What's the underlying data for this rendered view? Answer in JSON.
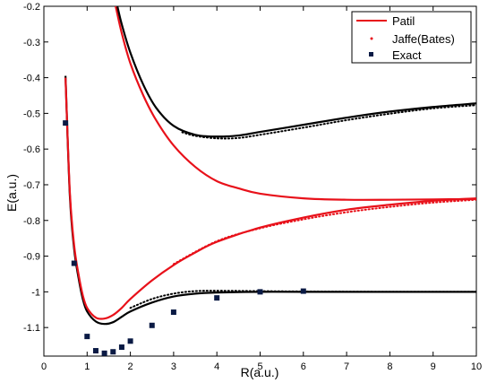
{
  "chart_data": {
    "type": "line",
    "xlabel": "R(a.u.)",
    "ylabel": "E(a.u.)",
    "xlim": [
      0,
      10
    ],
    "ylim": [
      -1.18,
      -0.2
    ],
    "x_ticks": [
      0,
      1,
      2,
      3,
      4,
      5,
      6,
      7,
      8,
      9,
      10
    ],
    "y_ticks": [
      -1.1,
      -1,
      -0.9,
      -0.8,
      -0.7,
      -0.6,
      -0.5,
      -0.4,
      -0.3,
      -0.2
    ],
    "x_tick_labels": [
      "0",
      "1",
      "2",
      "3",
      "4",
      "5",
      "6",
      "7",
      "8",
      "9",
      "10"
    ],
    "y_tick_labels": [
      "-1.1",
      "-1",
      "-0.9",
      "-0.8",
      "-0.7",
      "-0.6",
      "-0.5",
      "-0.4",
      "-0.3",
      "-0.2"
    ],
    "grid": false,
    "legend_position": "top-right",
    "legend": [
      {
        "label": "Patil",
        "style": "red-line"
      },
      {
        "label": "Jaffe(Bates)",
        "style": "red-dot"
      },
      {
        "label": "Exact",
        "style": "navy-square"
      }
    ],
    "curves": [
      {
        "id": "ground-black",
        "color": "#000000",
        "dash": false,
        "x": [
          0.5,
          0.6,
          0.7,
          0.8,
          0.9,
          1.0,
          1.2,
          1.4,
          1.6,
          1.8,
          2.0,
          2.5,
          3.0,
          3.5,
          4.0,
          5.0,
          6.0,
          8.0,
          10.0
        ],
        "y": [
          -0.395,
          -0.73,
          -0.88,
          -0.96,
          -1.02,
          -1.055,
          -1.083,
          -1.09,
          -1.085,
          -1.07,
          -1.055,
          -1.03,
          -1.013,
          -1.005,
          -1.002,
          -1.0,
          -1.0,
          -1.0,
          -1.0
        ]
      },
      {
        "id": "ground-dotted",
        "color": "#000000",
        "dash": true,
        "x": [
          2.0,
          2.5,
          3.0,
          3.5,
          4.0,
          5.0,
          6.0,
          8.0,
          10.0
        ],
        "y": [
          -1.045,
          -1.02,
          -1.005,
          -0.998,
          -0.997,
          -0.998,
          -0.999,
          -1.0,
          -1.0
        ]
      },
      {
        "id": "ground-red",
        "color": "#e8111a",
        "dash": false,
        "x": [
          0.5,
          0.6,
          0.7,
          0.8,
          0.9,
          1.0,
          1.2,
          1.4,
          1.6,
          1.8,
          2.0,
          2.5,
          3.0,
          3.5,
          4.0,
          5.0,
          6.0,
          7.0,
          8.0,
          9.0,
          10.0
        ],
        "y": [
          -0.4,
          -0.72,
          -0.87,
          -0.95,
          -1.01,
          -1.045,
          -1.072,
          -1.075,
          -1.065,
          -1.045,
          -1.02,
          -0.968,
          -0.925,
          -0.89,
          -0.86,
          -0.82,
          -0.792,
          -0.77,
          -0.756,
          -0.745,
          -0.738
        ]
      },
      {
        "id": "ground-red-dotted",
        "color": "#e8111a",
        "dash": true,
        "x": [
          3.0,
          4.0,
          5.0,
          6.0,
          7.0,
          8.0,
          9.0,
          10.0
        ],
        "y": [
          -0.922,
          -0.858,
          -0.822,
          -0.797,
          -0.777,
          -0.762,
          -0.75,
          -0.742
        ]
      },
      {
        "id": "excited-red",
        "color": "#e8111a",
        "dash": false,
        "x": [
          1.66,
          1.8,
          2.0,
          2.3,
          2.6,
          3.0,
          3.5,
          4.0,
          4.5,
          5.0,
          6.0,
          7.0,
          8.0,
          9.0,
          10.0
        ],
        "y": [
          -0.2,
          -0.275,
          -0.36,
          -0.45,
          -0.52,
          -0.59,
          -0.65,
          -0.69,
          -0.71,
          -0.725,
          -0.738,
          -0.742,
          -0.742,
          -0.741,
          -0.74
        ]
      },
      {
        "id": "excited-black",
        "color": "#000000",
        "dash": false,
        "x": [
          1.7,
          1.8,
          2.0,
          2.3,
          2.6,
          3.0,
          3.5,
          4.0,
          4.5,
          5.0,
          6.0,
          7.0,
          8.0,
          9.0,
          10.0
        ],
        "y": [
          -0.2,
          -0.25,
          -0.33,
          -0.42,
          -0.485,
          -0.535,
          -0.56,
          -0.565,
          -0.562,
          -0.552,
          -0.532,
          -0.512,
          -0.495,
          -0.482,
          -0.472
        ]
      },
      {
        "id": "excited-dotted",
        "color": "#000000",
        "dash": true,
        "x": [
          3.2,
          3.5,
          4.0,
          4.5,
          5.0,
          6.0,
          7.0,
          8.0,
          9.0,
          10.0
        ],
        "y": [
          -0.553,
          -0.563,
          -0.57,
          -0.569,
          -0.56,
          -0.54,
          -0.519,
          -0.501,
          -0.486,
          -0.477
        ]
      }
    ],
    "exact_points": {
      "x": [
        0.5,
        0.7,
        1.0,
        1.2,
        1.4,
        1.6,
        1.8,
        2.0,
        2.5,
        3.0,
        4.0,
        5.0,
        6.0
      ],
      "y": [
        -0.527,
        -0.92,
        -1.125,
        -1.165,
        -1.172,
        -1.168,
        -1.155,
        -1.138,
        -1.094,
        -1.057,
        -1.017,
        -1.0,
        -0.998
      ]
    }
  }
}
